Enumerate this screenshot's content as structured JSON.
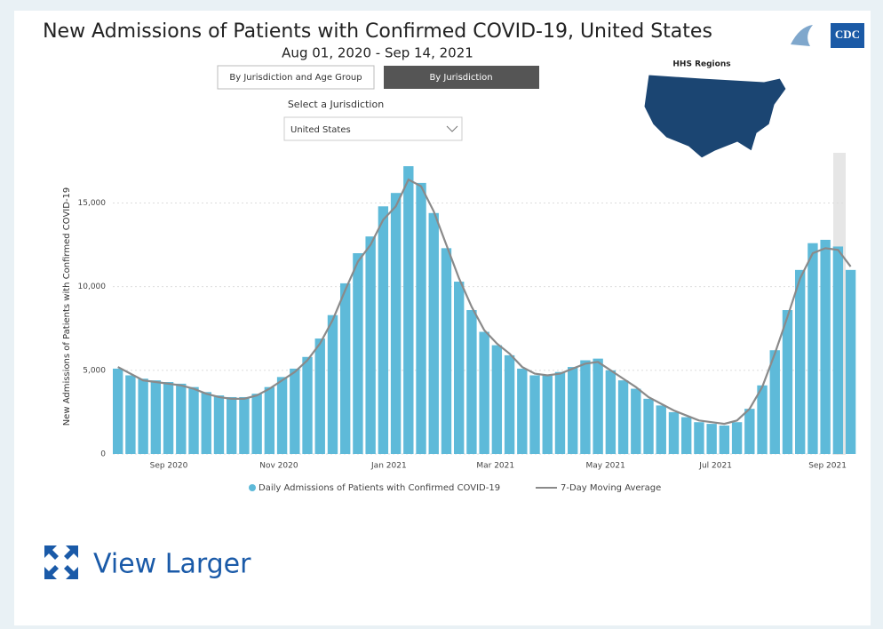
{
  "chart_data": {
    "type": "bar_line",
    "title": "New Admissions of Patients with Confirmed COVID-19, United States",
    "subtitle": "Aug 01, 2020 - Sep 14, 2021",
    "y_label": "New Admissions of Patients with Confirmed COVID-19",
    "x": [
      0,
      7,
      14,
      21,
      28,
      35,
      42,
      49,
      56,
      63,
      70,
      77,
      84,
      91,
      98,
      105,
      112,
      119,
      126,
      133,
      140,
      147,
      154,
      161,
      168,
      175,
      182,
      189,
      196,
      203,
      210,
      217,
      224,
      231,
      238,
      245,
      252,
      259,
      266,
      273,
      280,
      287,
      294,
      301,
      308,
      315,
      322,
      329,
      336,
      343,
      350,
      357,
      364,
      371,
      378,
      385,
      392,
      399,
      406
    ],
    "xlim": [
      0,
      409
    ],
    "xticks": [
      {
        "value": 31,
        "label": "Sep 2020"
      },
      {
        "value": 92,
        "label": "Nov 2020"
      },
      {
        "value": 153,
        "label": "Jan 2021"
      },
      {
        "value": 212,
        "label": "Mar 2021"
      },
      {
        "value": 273,
        "label": "May 2021"
      },
      {
        "value": 334,
        "label": "Jul 2021"
      },
      {
        "value": 396,
        "label": "Sep 2021"
      }
    ],
    "ylim": [
      0,
      18000
    ],
    "yticks": [
      0,
      {
        "value": 5000,
        "label": "5,000"
      },
      {
        "value": 10000,
        "label": "10,000"
      },
      {
        "value": 15000,
        "label": "15,000"
      }
    ],
    "grid": true,
    "series": [
      {
        "name": "Daily Admissions of Patients with Confirmed COVID-19",
        "color": "#5ebad9",
        "kind": "bar",
        "values": [
          5100,
          4700,
          4500,
          4400,
          4300,
          4200,
          4000,
          3700,
          3500,
          3400,
          3400,
          3600,
          4000,
          4600,
          5100,
          5800,
          6900,
          8300,
          10200,
          12000,
          13000,
          14800,
          15600,
          17200,
          16200,
          14400,
          12300,
          10300,
          8600,
          7300,
          6500,
          5900,
          5100,
          4700,
          4700,
          4900,
          5200,
          5600,
          5700,
          5000,
          4400,
          3900,
          3300,
          2900,
          2500,
          2200,
          1900,
          1800,
          1700,
          1900,
          2700,
          4100,
          6200,
          8600,
          11000,
          12600,
          12800,
          12400,
          11000
        ]
      },
      {
        "name": "7-Day Moving Average",
        "color": "#8a8a8a",
        "kind": "line",
        "values": [
          5200,
          4800,
          4400,
          4300,
          4200,
          4100,
          3900,
          3600,
          3400,
          3300,
          3300,
          3500,
          3900,
          4400,
          4900,
          5600,
          6600,
          8000,
          9800,
          11500,
          12500,
          14000,
          14800,
          16400,
          16000,
          14500,
          12500,
          10500,
          8800,
          7400,
          6600,
          6000,
          5200,
          4800,
          4700,
          4800,
          5100,
          5400,
          5500,
          5000,
          4500,
          4000,
          3400,
          3000,
          2600,
          2300,
          2000,
          1900,
          1800,
          2000,
          2700,
          4000,
          6000,
          8200,
          10500,
          12000,
          12300,
          12200,
          11200
        ]
      }
    ]
  },
  "tabs": [
    "By Jurisdiction and Age Group",
    "By Jurisdiction"
  ],
  "jurisdiction_label": "Select a Jurisdiction",
  "jurisdiction_value": "United States",
  "map_title": "HHS Regions",
  "logo": "CDC",
  "view_larger": "View Larger"
}
